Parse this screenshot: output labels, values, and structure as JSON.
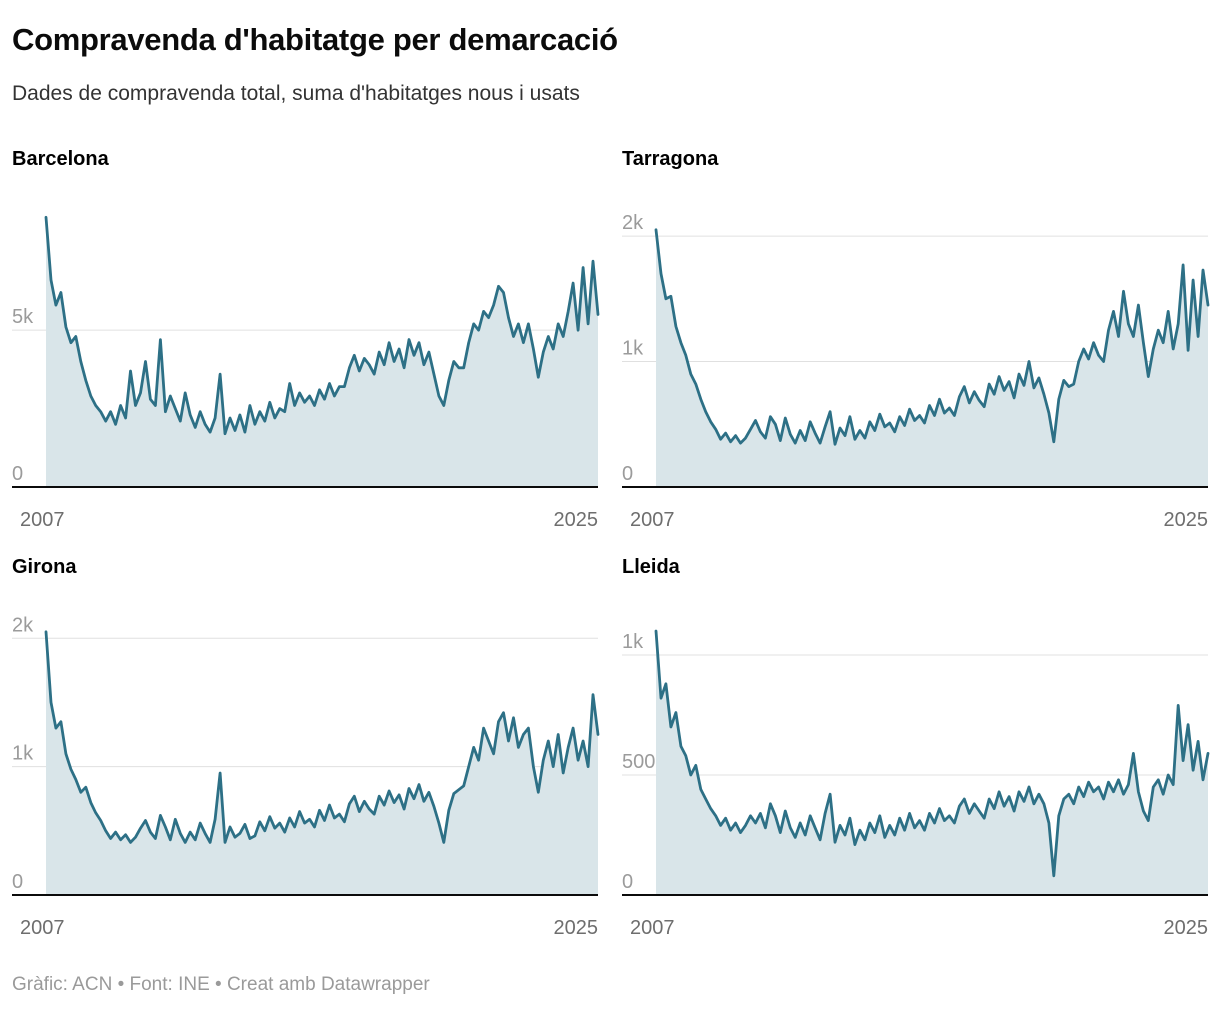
{
  "header": {
    "title": "Compravenda d'habitatge per demarcació",
    "subtitle": "Dades de compravenda total, suma d'habitatges nous i usats"
  },
  "footer": {
    "credit": "Gràfic: ACN • Font: INE • Creat amb Datawrapper"
  },
  "colors": {
    "line": "#2d7086",
    "area_fill": "#d9e5e9",
    "gridline": "#e0e0e0",
    "baseline": "#0b0b0b",
    "ytick_label": "#9b9b9b",
    "xtick_label": "#6e6e6e"
  },
  "chart_data": [
    {
      "type": "area",
      "title": "Barcelona",
      "x_start": 2007,
      "x_interval_years": 0.1667,
      "x_tick_labels": [
        "2007",
        "2025"
      ],
      "ylim": [
        0,
        8800
      ],
      "yticks": [
        {
          "value": 0,
          "label": "0"
        },
        {
          "value": 5000,
          "label": "5k"
        }
      ],
      "grid": "horizontal",
      "legend": "none",
      "values": [
        8600,
        6600,
        5800,
        6200,
        5100,
        4600,
        4800,
        4000,
        3400,
        2900,
        2600,
        2400,
        2100,
        2400,
        2000,
        2600,
        2200,
        3700,
        2600,
        3000,
        4000,
        2800,
        2600,
        4700,
        2400,
        2900,
        2500,
        2100,
        3000,
        2300,
        1900,
        2400,
        2000,
        1750,
        2200,
        3600,
        1700,
        2200,
        1800,
        2300,
        1750,
        2600,
        2000,
        2400,
        2100,
        2700,
        2200,
        2500,
        2400,
        3300,
        2600,
        3000,
        2700,
        2900,
        2600,
        3100,
        2800,
        3300,
        2900,
        3200,
        3200,
        3800,
        4200,
        3700,
        4100,
        3900,
        3600,
        4300,
        3900,
        4600,
        4000,
        4400,
        3800,
        4700,
        4200,
        4600,
        3900,
        4300,
        3600,
        2900,
        2600,
        3400,
        4000,
        3800,
        3800,
        4600,
        5200,
        5000,
        5600,
        5400,
        5800,
        6400,
        6200,
        5400,
        4800,
        5200,
        4600,
        5200,
        4400,
        3500,
        4300,
        4800,
        4400,
        5200,
        4800,
        5600,
        6500,
        5000,
        7000,
        5200,
        7200,
        5500
      ]
    },
    {
      "type": "area",
      "title": "Tarragona",
      "x_start": 2007,
      "x_interval_years": 0.1667,
      "x_tick_labels": [
        "2007",
        "2025"
      ],
      "ylim": [
        0,
        2200
      ],
      "yticks": [
        {
          "value": 0,
          "label": "0"
        },
        {
          "value": 1000,
          "label": "1k"
        },
        {
          "value": 2000,
          "label": "2k"
        }
      ],
      "grid": "horizontal",
      "legend": "none",
      "values": [
        2050,
        1700,
        1500,
        1520,
        1280,
        1150,
        1050,
        900,
        820,
        700,
        600,
        520,
        460,
        380,
        430,
        360,
        410,
        350,
        390,
        460,
        530,
        440,
        390,
        560,
        500,
        370,
        550,
        420,
        350,
        450,
        370,
        520,
        430,
        350,
        480,
        600,
        340,
        470,
        410,
        560,
        380,
        450,
        390,
        520,
        450,
        580,
        480,
        510,
        440,
        560,
        490,
        620,
        530,
        570,
        510,
        650,
        570,
        700,
        590,
        630,
        570,
        720,
        800,
        670,
        760,
        690,
        640,
        820,
        740,
        880,
        770,
        840,
        710,
        900,
        810,
        1000,
        790,
        870,
        740,
        590,
        360,
        700,
        850,
        800,
        820,
        1000,
        1100,
        1020,
        1150,
        1050,
        1000,
        1250,
        1400,
        1200,
        1560,
        1300,
        1200,
        1450,
        1150,
        880,
        1100,
        1250,
        1150,
        1400,
        1100,
        1300,
        1770,
        1090,
        1650,
        1200,
        1730,
        1450
      ]
    },
    {
      "type": "area",
      "title": "Girona",
      "x_start": 2007,
      "x_interval_years": 0.1667,
      "x_tick_labels": [
        "2007",
        "2025"
      ],
      "ylim": [
        0,
        2150
      ],
      "yticks": [
        {
          "value": 0,
          "label": "0"
        },
        {
          "value": 1000,
          "label": "1k"
        },
        {
          "value": 2000,
          "label": "2k"
        }
      ],
      "grid": "horizontal",
      "legend": "none",
      "values": [
        2050,
        1500,
        1300,
        1350,
        1100,
        980,
        900,
        800,
        840,
        720,
        640,
        580,
        500,
        440,
        490,
        430,
        470,
        410,
        450,
        520,
        580,
        490,
        440,
        620,
        530,
        430,
        590,
        480,
        410,
        490,
        430,
        560,
        480,
        410,
        590,
        950,
        410,
        530,
        450,
        480,
        550,
        440,
        460,
        570,
        500,
        610,
        520,
        560,
        490,
        600,
        530,
        650,
        560,
        590,
        530,
        660,
        580,
        700,
        600,
        630,
        570,
        710,
        770,
        650,
        730,
        670,
        630,
        770,
        700,
        810,
        720,
        780,
        670,
        830,
        750,
        860,
        730,
        800,
        690,
        560,
        410,
        660,
        790,
        820,
        850,
        1000,
        1150,
        1050,
        1300,
        1200,
        1100,
        1350,
        1420,
        1200,
        1380,
        1150,
        1250,
        1300,
        1000,
        800,
        1050,
        1200,
        1000,
        1250,
        950,
        1150,
        1300,
        1050,
        1200,
        1000,
        1560,
        1250
      ]
    },
    {
      "type": "area",
      "title": "Lleida",
      "x_start": 2007,
      "x_interval_years": 0.1667,
      "x_tick_labels": [
        "2007",
        "2025"
      ],
      "ylim": [
        0,
        1150
      ],
      "yticks": [
        {
          "value": 0,
          "label": "0"
        },
        {
          "value": 500,
          "label": "500"
        },
        {
          "value": 1000,
          "label": "1k"
        }
      ],
      "grid": "horizontal",
      "legend": "none",
      "values": [
        1100,
        820,
        880,
        700,
        760,
        620,
        580,
        500,
        540,
        440,
        400,
        360,
        330,
        290,
        320,
        270,
        300,
        260,
        290,
        330,
        300,
        340,
        280,
        380,
        330,
        260,
        350,
        280,
        240,
        300,
        250,
        330,
        280,
        230,
        340,
        420,
        220,
        290,
        250,
        320,
        210,
        270,
        230,
        300,
        260,
        330,
        240,
        290,
        250,
        320,
        270,
        340,
        280,
        310,
        270,
        340,
        300,
        360,
        310,
        330,
        300,
        370,
        400,
        340,
        380,
        350,
        320,
        400,
        360,
        430,
        370,
        410,
        350,
        430,
        390,
        450,
        380,
        420,
        380,
        300,
        80,
        330,
        400,
        420,
        380,
        450,
        410,
        470,
        430,
        450,
        400,
        470,
        430,
        480,
        420,
        460,
        590,
        430,
        350,
        310,
        450,
        480,
        420,
        500,
        460,
        790,
        560,
        710,
        520,
        640,
        480,
        590
      ]
    }
  ]
}
